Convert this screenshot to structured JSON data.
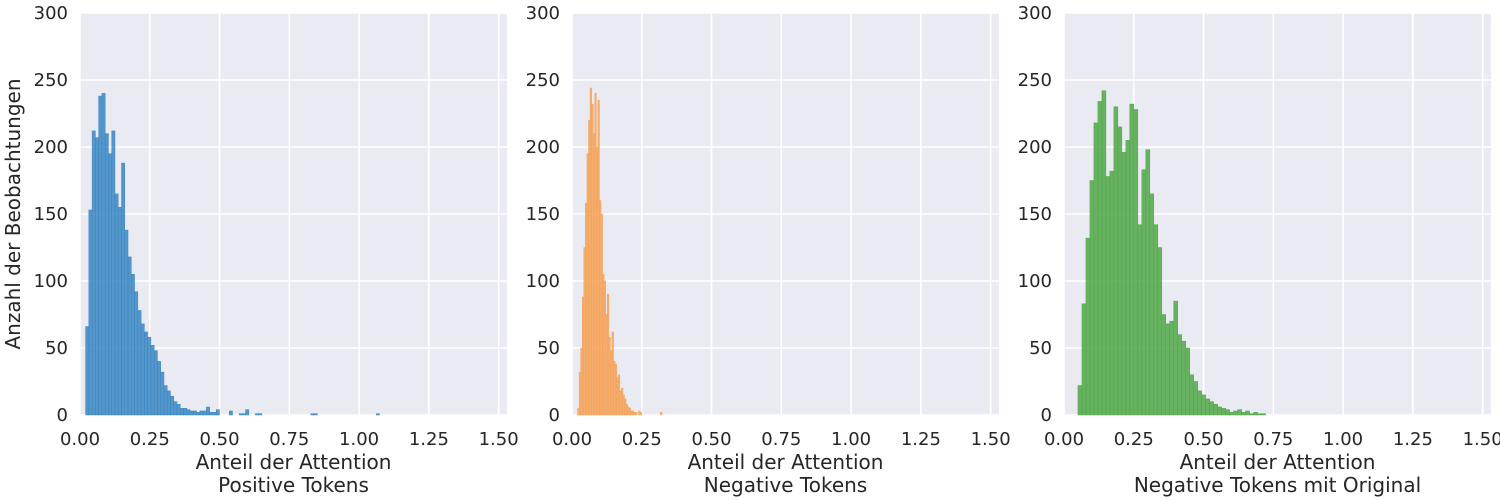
{
  "chart_data": [
    {
      "type": "histogram",
      "xlabel": "Anteil der Attention",
      "subtitle": "Positive Tokens",
      "ylabel": "Anzahl der Beobachtungen",
      "xlim": [
        0,
        1.53
      ],
      "ylim": [
        0,
        300
      ],
      "xticks": [
        "0.00",
        "0.25",
        "0.50",
        "0.75",
        "1.00",
        "1.25",
        "1.50"
      ],
      "yticks": [
        "0",
        "50",
        "100",
        "150",
        "200",
        "250",
        "300"
      ],
      "color": "#3a87c3",
      "bin_start": 0.02,
      "bin_width": 0.0117,
      "values": [
        66,
        153,
        212,
        207,
        238,
        240,
        210,
        195,
        212,
        165,
        155,
        188,
        138,
        118,
        105,
        92,
        78,
        68,
        62,
        58,
        52,
        48,
        40,
        32,
        22,
        18,
        14,
        10,
        8,
        5,
        5,
        4,
        3,
        3,
        2,
        3,
        3,
        6,
        2,
        2,
        4,
        0,
        0,
        0,
        3,
        0,
        0,
        1,
        1,
        4,
        0,
        0,
        1,
        1,
        0,
        0,
        0,
        0,
        0,
        0,
        0,
        0,
        0,
        0,
        0,
        0,
        0,
        0,
        0,
        1,
        1,
        0,
        0,
        0,
        0,
        0,
        0,
        0,
        0,
        0,
        0,
        0,
        0,
        0,
        0,
        0,
        0,
        0,
        0,
        1
      ]
    },
    {
      "type": "histogram",
      "xlabel": "Anteil der Attention",
      "subtitle": "Negative Tokens",
      "ylabel": "",
      "xlim": [
        0,
        1.53
      ],
      "ylim": [
        0,
        300
      ],
      "xticks": [
        "0.00",
        "0.25",
        "0.50",
        "0.75",
        "1.00",
        "1.25",
        "1.50"
      ],
      "yticks": [
        "0",
        "50",
        "100",
        "150",
        "200",
        "250",
        "300"
      ],
      "color": "#f5a35a",
      "bin_start": 0.02,
      "bin_width": 0.0056,
      "values": [
        5,
        32,
        50,
        88,
        125,
        158,
        195,
        220,
        244,
        232,
        210,
        240,
        200,
        235,
        160,
        150,
        105,
        100,
        75,
        90,
        58,
        48,
        62,
        40,
        38,
        28,
        30,
        18,
        20,
        15,
        12,
        8,
        6,
        5,
        3,
        3,
        2,
        2,
        0,
        3,
        2,
        0,
        0,
        0,
        0,
        0,
        0,
        0,
        0,
        0,
        0,
        0,
        0,
        2
      ]
    },
    {
      "type": "histogram",
      "xlabel": "Anteil der Attention",
      "subtitle": "Negative Tokens mit Original",
      "ylabel": "",
      "xlim": [
        0,
        1.53
      ],
      "ylim": [
        0,
        300
      ],
      "xticks": [
        "0.00",
        "0.25",
        "0.50",
        "0.75",
        "1.00",
        "1.25",
        "1.50"
      ],
      "yticks": [
        "0",
        "50",
        "100",
        "150",
        "200",
        "250",
        "300"
      ],
      "color": "#4fa847",
      "bin_start": 0.05,
      "bin_width": 0.0143,
      "values": [
        22,
        83,
        132,
        175,
        218,
        234,
        242,
        178,
        182,
        230,
        215,
        196,
        205,
        232,
        228,
        142,
        183,
        198,
        165,
        142,
        125,
        75,
        68,
        70,
        85,
        60,
        55,
        50,
        30,
        25,
        18,
        15,
        12,
        10,
        8,
        6,
        5,
        4,
        2,
        3,
        4,
        2,
        3,
        1,
        2,
        1,
        1,
        0,
        0,
        0,
        0,
        0,
        0,
        0,
        0,
        0,
        0,
        0,
        0,
        0,
        0,
        0,
        0,
        0,
        0,
        0,
        0,
        0,
        0,
        0,
        0,
        0,
        0,
        0,
        0,
        0,
        0,
        0,
        0,
        0,
        0,
        0,
        0,
        0,
        0,
        0,
        0,
        0,
        0,
        0,
        0,
        0,
        0,
        0,
        0,
        0,
        0,
        0,
        0,
        0,
        0,
        0,
        0,
        0,
        0,
        0,
        0,
        0,
        0,
        0,
        0,
        0,
        0,
        0,
        0,
        0,
        0,
        0,
        0,
        0,
        0,
        0,
        0,
        0,
        0,
        0,
        0,
        0,
        0,
        0,
        0,
        0,
        0,
        0,
        0,
        0,
        0,
        0,
        0,
        0,
        0,
        0,
        0,
        0,
        0,
        0,
        0,
        0,
        0,
        0,
        0,
        0
      ]
    }
  ]
}
